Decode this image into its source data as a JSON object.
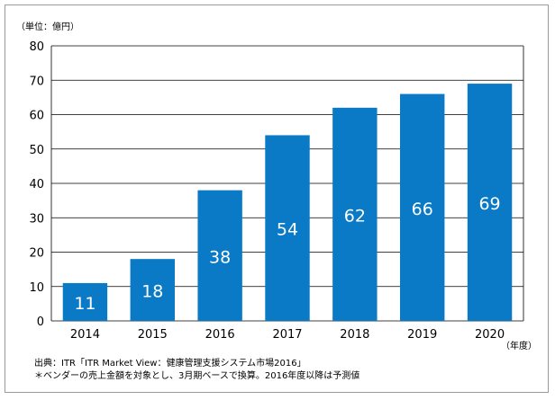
{
  "chart_data": {
    "type": "bar",
    "categories": [
      "2014",
      "2015",
      "2016",
      "2017",
      "2018",
      "2019",
      "2020"
    ],
    "values": [
      11,
      18,
      38,
      54,
      62,
      66,
      69
    ],
    "unit_label": "（単位：億円）",
    "xlabel": "（年度）",
    "ylabel": "",
    "ylim": [
      0,
      80
    ],
    "yticks": [
      0,
      10,
      20,
      30,
      40,
      50,
      60,
      70,
      80
    ],
    "grid": true,
    "bar_color": "#0a7ac6",
    "label_color": "#ffffff"
  },
  "notes": {
    "source": "出典：ITR「ITR Market View：健康管理支援システム市場2016」",
    "footnote": "＊ベンダーの売上金額を対象とし、3月期ベースで換算。2016年度以降は予測値"
  }
}
